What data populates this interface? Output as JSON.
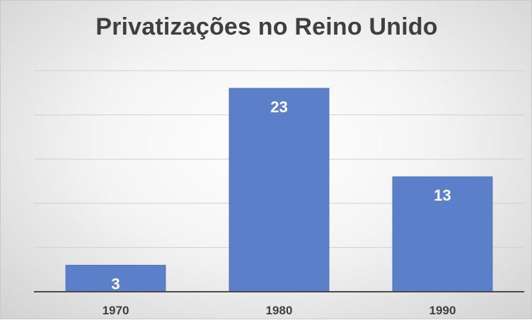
{
  "chart_data": {
    "type": "bar",
    "title": "Privatizações no Reino Unido",
    "categories": [
      "1970",
      "1980",
      "1990"
    ],
    "values": [
      3,
      23,
      13
    ],
    "xlabel": "",
    "ylabel": "",
    "ylim": [
      0,
      25
    ],
    "grid": true,
    "legend": "none",
    "colors": {
      "bar": "#5b80c9",
      "bar_border": "#4f74bd",
      "grid": "#d0d0d0",
      "axis": "#4a4a4a"
    }
  }
}
